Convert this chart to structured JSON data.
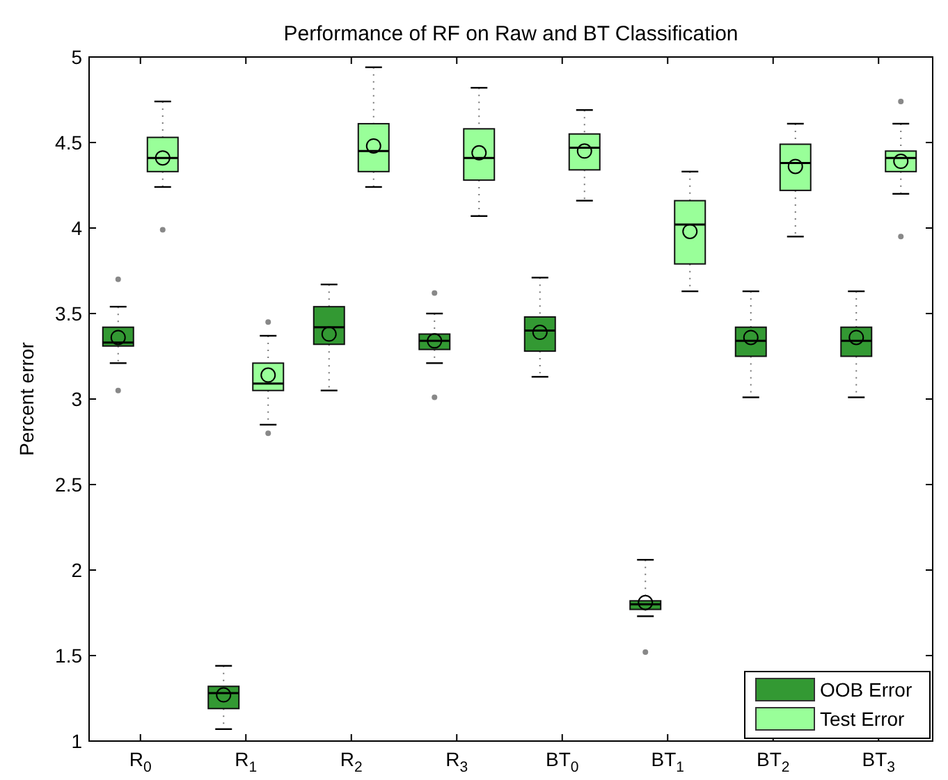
{
  "chart_data": {
    "type": "box",
    "title": "Performance of RF on Raw and BT Classification",
    "ylabel": "Percent error",
    "categories": [
      "R$_{0}$",
      "R$_{1}$",
      "R$_{2}$",
      "R$_{3}$",
      "BT$_{0}$",
      "BT$_{1}$",
      "BT$_{2}$",
      "BT$_{3}$"
    ],
    "ylim": [
      1,
      5
    ],
    "yticks": [
      1,
      1.5,
      2,
      2.5,
      3,
      3.5,
      4,
      4.5,
      5
    ],
    "grid": false,
    "legend": "bottom right",
    "line_style": "dotted",
    "marker": "circle",
    "series": [
      {
        "name": "OOB Error",
        "color": "#339933",
        "boxes": [
          {
            "low": 3.21,
            "q1": 3.31,
            "median": 3.33,
            "q3": 3.42,
            "high": 3.54,
            "mean": 3.36,
            "outliers": [
              3.7,
              3.05
            ]
          },
          {
            "low": 1.07,
            "q1": 1.19,
            "median": 1.28,
            "q3": 1.32,
            "high": 1.44,
            "mean": 1.27
          },
          {
            "low": 3.05,
            "q1": 3.32,
            "median": 3.42,
            "q3": 3.54,
            "high": 3.67,
            "mean": 3.38
          },
          {
            "low": 3.21,
            "q1": 3.29,
            "median": 3.34,
            "q3": 3.38,
            "high": 3.5,
            "mean": 3.34,
            "outliers": [
              3.62,
              3.01
            ]
          },
          {
            "low": 3.13,
            "q1": 3.28,
            "median": 3.4,
            "q3": 3.48,
            "high": 3.71,
            "mean": 3.39
          },
          {
            "low": 1.73,
            "q1": 1.77,
            "median": 1.8,
            "q3": 1.82,
            "high": 2.06,
            "mean": 1.81,
            "outliers": [
              1.52
            ]
          },
          {
            "low": 3.01,
            "q1": 3.25,
            "median": 3.34,
            "q3": 3.42,
            "high": 3.63,
            "mean": 3.36
          },
          {
            "low": 3.01,
            "q1": 3.25,
            "median": 3.34,
            "q3": 3.42,
            "high": 3.63,
            "mean": 3.36
          }
        ]
      },
      {
        "name": "Test Error",
        "color": "#99ff99",
        "boxes": [
          {
            "low": 4.24,
            "q1": 4.33,
            "median": 4.41,
            "q3": 4.53,
            "high": 4.74,
            "mean": 4.41,
            "outliers": [
              3.99
            ]
          },
          {
            "low": 2.85,
            "q1": 3.05,
            "median": 3.09,
            "q3": 3.21,
            "high": 3.37,
            "mean": 3.14,
            "outliers": [
              3.45,
              2.8
            ]
          },
          {
            "low": 4.24,
            "q1": 4.33,
            "median": 4.45,
            "q3": 4.61,
            "high": 4.94,
            "mean": 4.48
          },
          {
            "low": 4.07,
            "q1": 4.28,
            "median": 4.41,
            "q3": 4.58,
            "high": 4.82,
            "mean": 4.44
          },
          {
            "low": 4.16,
            "q1": 4.34,
            "median": 4.47,
            "q3": 4.55,
            "high": 4.69,
            "mean": 4.45
          },
          {
            "low": 3.63,
            "q1": 3.79,
            "median": 4.02,
            "q3": 4.16,
            "high": 4.33,
            "mean": 3.98
          },
          {
            "low": 3.95,
            "q1": 4.22,
            "median": 4.38,
            "q3": 4.49,
            "high": 4.61,
            "mean": 4.36
          },
          {
            "low": 4.2,
            "q1": 4.33,
            "median": 4.41,
            "q3": 4.45,
            "high": 4.61,
            "mean": 4.39,
            "outliers": [
              4.74,
              3.95
            ]
          }
        ]
      }
    ]
  }
}
